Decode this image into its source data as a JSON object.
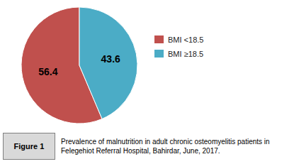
{
  "chart_data": {
    "type": "pie",
    "categories": [
      "BMI <18.5",
      "BMI ≥18.5"
    ],
    "values": [
      56.4,
      43.6
    ],
    "colors": [
      "#c0504d",
      "#4bacc6"
    ],
    "data_labels": true,
    "legend": "right",
    "annotations": [
      "Figure 1",
      "Prevalence of malnutrition in adult chronic osteomyelitis patients in Felegehiot Referral Hospital, Bahirdar, June, 2017."
    ]
  }
}
